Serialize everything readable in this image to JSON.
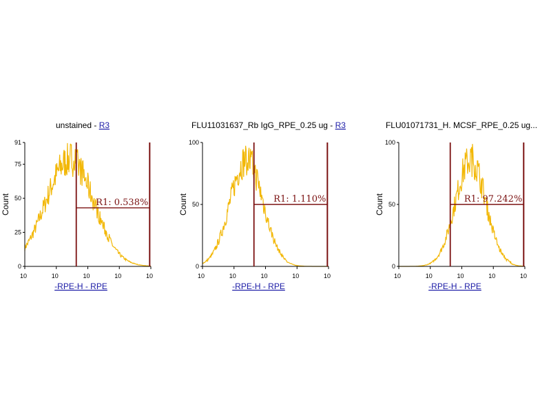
{
  "chart_data": [
    {
      "type": "area",
      "title": "unstained - ",
      "title_link": "R3",
      "xlabel": "-RPE-H - RPE",
      "ylabel": "Count",
      "x_scale": "log",
      "x_ticks": [
        "10",
        "10",
        "10",
        "10",
        "10"
      ],
      "xlim": [
        1,
        100000
      ],
      "ylim": [
        0,
        91
      ],
      "y_ticks": [
        0,
        25,
        50,
        75,
        91
      ],
      "series_color": "#f2b705",
      "gate_color": "#7a1010",
      "gate": {
        "label": "R1: 0.538%",
        "from": 110,
        "to": 90000,
        "level": 43
      },
      "peak": {
        "x": 60,
        "height": 91,
        "spread": 0.19
      }
    },
    {
      "type": "area",
      "title": "FLU11031637_Rb IgG_RPE_0.25 ug - ",
      "title_link": "R3",
      "xlabel": "-RPE-H - RPE",
      "ylabel": "Count",
      "x_scale": "log",
      "x_ticks": [
        "10",
        "10",
        "10",
        "10",
        "10"
      ],
      "xlim": [
        1,
        100000
      ],
      "ylim": [
        0,
        100
      ],
      "y_ticks": [
        0,
        50,
        100
      ],
      "series_color": "#f2b705",
      "gate_color": "#7a1010",
      "gate": {
        "label": "R1: 1.110%",
        "from": 110,
        "to": 90000,
        "level": 50
      },
      "peak": {
        "x": 55,
        "height": 100,
        "spread": 0.13
      }
    },
    {
      "type": "area",
      "title": "FLU01071731_H. MCSF_RPE_0.25 ug...",
      "title_link": "",
      "xlabel": "-RPE-H - RPE",
      "ylabel": "Count",
      "x_scale": "log",
      "x_ticks": [
        "10",
        "10",
        "10",
        "10",
        "10"
      ],
      "xlim": [
        1,
        100000
      ],
      "ylim": [
        0,
        100
      ],
      "y_ticks": [
        0,
        50,
        100
      ],
      "series_color": "#f2b705",
      "gate_color": "#7a1010",
      "gate": {
        "label": "R1: 97.242%",
        "from": 110,
        "to": 90000,
        "level": 50
      },
      "peak": {
        "x": 700,
        "height": 100,
        "spread": 0.12
      }
    }
  ]
}
